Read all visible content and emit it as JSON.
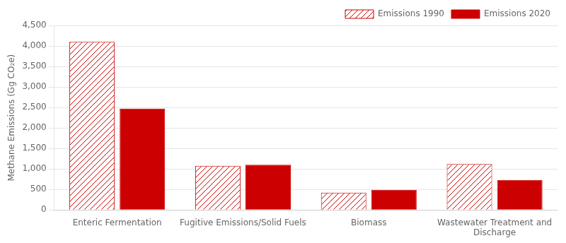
{
  "chart_data": {
    "type": "bar",
    "categories": [
      "Enteric Fermentation",
      "Fugitive Emissions/Solid Fuels",
      "Biomass",
      "Wastewater Treatment and\nDischarge"
    ],
    "series": [
      {
        "name": "Emissions 1990",
        "color": "#cc0000",
        "values": [
          4100,
          1075,
          420,
          1120
        ]
      },
      {
        "name": "Emissions 2020",
        "color": "#cc0000",
        "values": [
          2470,
          1100,
          490,
          730
        ]
      }
    ],
    "ylabel": "Methane Emissions (Gg CO₂e)",
    "ylim": [
      0,
      4500
    ],
    "yticks": [
      0,
      500,
      {
        "value": 1000,
        "label": "1,000"
      },
      {
        "value": 1500,
        "label": "1,500"
      },
      {
        "value": 2000,
        "label": "2,000"
      },
      {
        "value": 2500,
        "label": "2,500"
      },
      {
        "value": 3000,
        "label": "3,000"
      },
      {
        "value": 3500,
        "label": "3,500"
      },
      {
        "value": 4000,
        "label": "4,000"
      },
      {
        "value": 4500,
        "label": "4,500"
      }
    ],
    "grid": true,
    "legend": "upper right"
  }
}
